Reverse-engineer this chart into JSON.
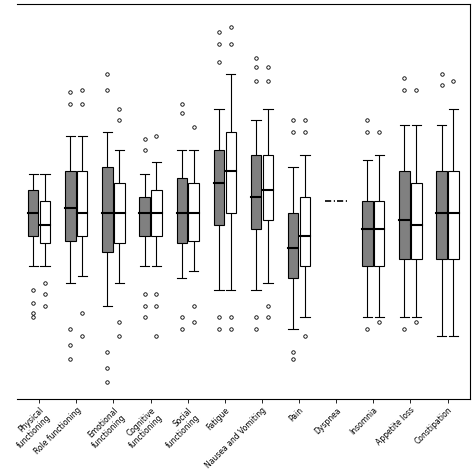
{
  "categories": [
    "Physical\nfunctioning",
    "Role functioning",
    "Emotional\nfunctioning",
    "Cognitive\nfunctioning",
    "Social\nfunctioning",
    "Fatigue",
    "Nausea and Vomiting",
    "Pain",
    "Dyspnea",
    "Insomnia",
    "Appetite loss",
    "Constipation"
  ],
  "dark_boxes": [
    {
      "med": -5,
      "q1": -15,
      "q3": 5,
      "whislo": -28,
      "whishi": 12,
      "fliers": [
        -38,
        -44,
        -48,
        -50
      ]
    },
    {
      "med": -3,
      "q1": -17,
      "q3": 13,
      "whislo": -35,
      "whishi": 28,
      "fliers": [
        42,
        47,
        -55,
        -62,
        -68
      ]
    },
    {
      "med": -5,
      "q1": -22,
      "q3": 15,
      "whislo": -45,
      "whishi": 30,
      "fliers": [
        48,
        55,
        -65,
        -72,
        -78
      ]
    },
    {
      "med": -5,
      "q1": -15,
      "q3": 2,
      "whislo": -28,
      "whishi": 12,
      "fliers": [
        22,
        27,
        -40,
        -45,
        -50
      ]
    },
    {
      "med": -5,
      "q1": -18,
      "q3": 10,
      "whislo": -33,
      "whishi": 22,
      "fliers": [
        38,
        42,
        -50,
        -55
      ]
    },
    {
      "med": 8,
      "q1": -10,
      "q3": 22,
      "whislo": -38,
      "whishi": 40,
      "fliers": [
        60,
        68,
        73,
        -50,
        -55
      ]
    },
    {
      "med": 2,
      "q1": -12,
      "q3": 20,
      "whislo": -38,
      "whishi": 35,
      "fliers": [
        52,
        58,
        62,
        -50,
        -55
      ]
    },
    {
      "med": -20,
      "q1": -33,
      "q3": -5,
      "whislo": -55,
      "whishi": 15,
      "fliers": [
        30,
        35,
        -65,
        -68
      ]
    },
    {
      "med": 0,
      "q1": 0,
      "q3": 0,
      "whislo": 0,
      "whishi": 0,
      "fliers": [],
      "dash_only": true
    },
    {
      "med": -12,
      "q1": -28,
      "q3": 0,
      "whislo": -50,
      "whishi": 18,
      "fliers": [
        30,
        35,
        -55
      ]
    },
    {
      "med": -8,
      "q1": -25,
      "q3": 13,
      "whislo": -50,
      "whishi": 33,
      "fliers": [
        48,
        53,
        -55
      ]
    },
    {
      "med": -5,
      "q1": -25,
      "q3": 13,
      "whislo": -58,
      "whishi": 33,
      "fliers": [
        50,
        55
      ]
    }
  ],
  "white_boxes": [
    {
      "med": -10,
      "q1": -18,
      "q3": 0,
      "whislo": -28,
      "whishi": 12,
      "fliers": [
        -35,
        -40,
        -45
      ]
    },
    {
      "med": -5,
      "q1": -15,
      "q3": 13,
      "whislo": -32,
      "whishi": 28,
      "fliers": [
        42,
        48,
        -48,
        -58
      ]
    },
    {
      "med": -5,
      "q1": -18,
      "q3": 8,
      "whislo": -35,
      "whishi": 22,
      "fliers": [
        35,
        40,
        -52,
        -58
      ]
    },
    {
      "med": -5,
      "q1": -15,
      "q3": 5,
      "whislo": -28,
      "whishi": 17,
      "fliers": [
        28,
        -40,
        -45,
        -58
      ]
    },
    {
      "med": -5,
      "q1": -17,
      "q3": 8,
      "whislo": -30,
      "whishi": 22,
      "fliers": [
        32,
        -45,
        -52
      ]
    },
    {
      "med": 13,
      "q1": -5,
      "q3": 30,
      "whislo": -38,
      "whishi": 55,
      "fliers": [
        68,
        75,
        -50,
        -55
      ]
    },
    {
      "med": 5,
      "q1": -8,
      "q3": 20,
      "whislo": -35,
      "whishi": 40,
      "fliers": [
        52,
        58,
        -45,
        -50
      ]
    },
    {
      "med": -15,
      "q1": -28,
      "q3": 2,
      "whislo": -50,
      "whishi": 20,
      "fliers": [
        30,
        35,
        -58
      ]
    },
    {
      "med": 0,
      "q1": 0,
      "q3": 0,
      "whislo": 0,
      "whishi": 0,
      "fliers": [],
      "dash_only": true
    },
    {
      "med": -12,
      "q1": -28,
      "q3": 0,
      "whislo": -50,
      "whishi": 20,
      "fliers": [
        30,
        -52
      ]
    },
    {
      "med": -10,
      "q1": -25,
      "q3": 8,
      "whislo": -50,
      "whishi": 33,
      "fliers": [
        48,
        -52
      ]
    },
    {
      "med": -5,
      "q1": -25,
      "q3": 13,
      "whislo": -58,
      "whishi": 40,
      "fliers": [
        52
      ]
    }
  ],
  "dark_color": "#808080",
  "white_color": "#ffffff",
  "flier_size": 2.5,
  "ylim": [
    -85,
    85
  ],
  "background_color": "#ffffff",
  "figsize": [
    4.74,
    4.74
  ],
  "dpi": 100
}
